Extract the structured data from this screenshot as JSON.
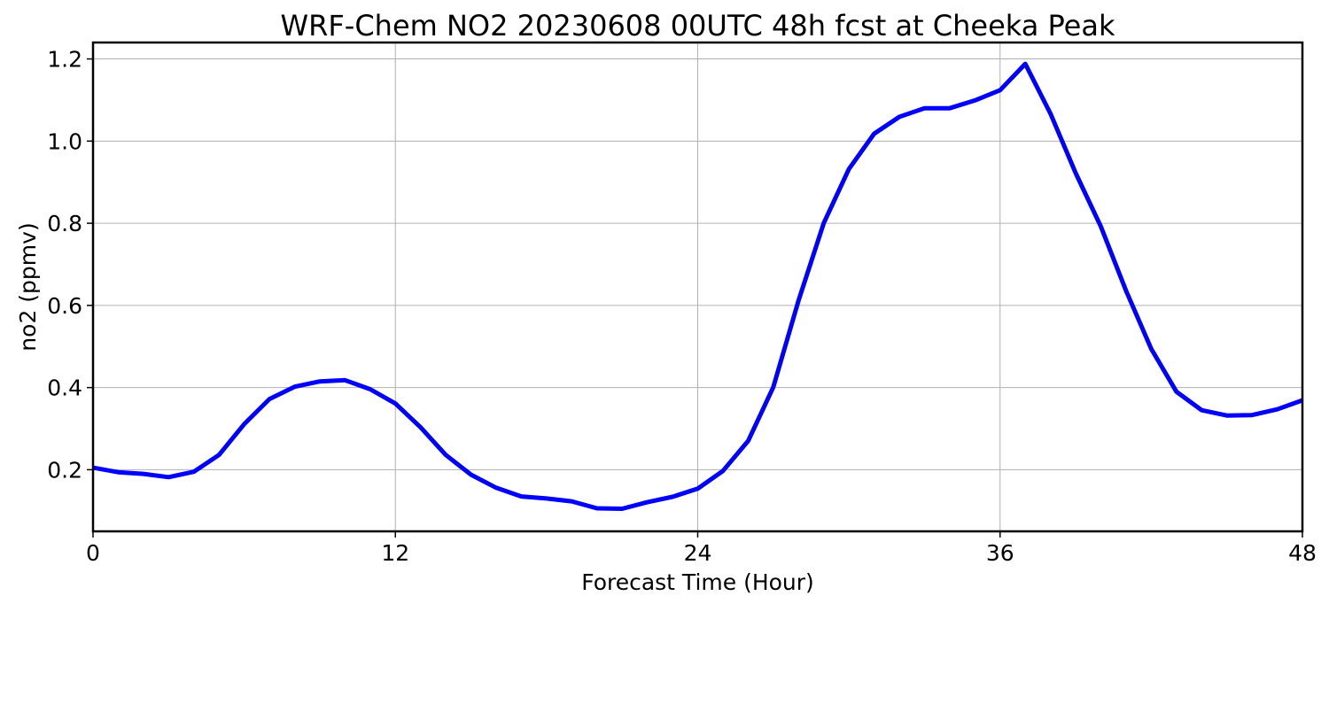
{
  "chart_data": {
    "type": "line",
    "title": "WRF-Chem NO2  20230608 00UTC 48h fcst at Cheeka Peak",
    "xlabel": "Forecast Time (Hour)",
    "ylabel": "no2  (ppmv)",
    "xlim": [
      0,
      48
    ],
    "ylim": [
      0.05,
      1.24
    ],
    "x_ticks": [
      0,
      12,
      24,
      36,
      48
    ],
    "x_tick_labels": [
      "0",
      "12",
      "24",
      "36",
      "48"
    ],
    "y_ticks": [
      0.2,
      0.4,
      0.6,
      0.8,
      1.0,
      1.2
    ],
    "y_tick_labels": [
      "0.2",
      "0.4",
      "0.6",
      "0.8",
      "1.0",
      "1.2"
    ],
    "grid": true,
    "series": [
      {
        "color": "#0000ff",
        "x": [
          0,
          1,
          2,
          3,
          4,
          5,
          6,
          7,
          8,
          9,
          10,
          11,
          12,
          13,
          14,
          15,
          16,
          17,
          18,
          19,
          20,
          21,
          22,
          23,
          24,
          25,
          26,
          27,
          28,
          29,
          30,
          31,
          32,
          33,
          34,
          35,
          36,
          37,
          38,
          39,
          40,
          41,
          42,
          43,
          44,
          45,
          46,
          47,
          48
        ],
        "values": [
          0.205,
          0.194,
          0.19,
          0.182,
          0.195,
          0.236,
          0.311,
          0.372,
          0.402,
          0.415,
          0.418,
          0.396,
          0.361,
          0.303,
          0.236,
          0.188,
          0.156,
          0.135,
          0.13,
          0.123,
          0.106,
          0.105,
          0.121,
          0.134,
          0.154,
          0.197,
          0.27,
          0.401,
          0.612,
          0.8,
          0.932,
          1.018,
          1.059,
          1.08,
          1.08,
          1.099,
          1.124,
          1.188,
          1.067,
          0.922,
          0.792,
          0.636,
          0.494,
          0.39,
          0.345,
          0.332,
          0.333,
          0.347,
          0.369
        ]
      }
    ]
  }
}
